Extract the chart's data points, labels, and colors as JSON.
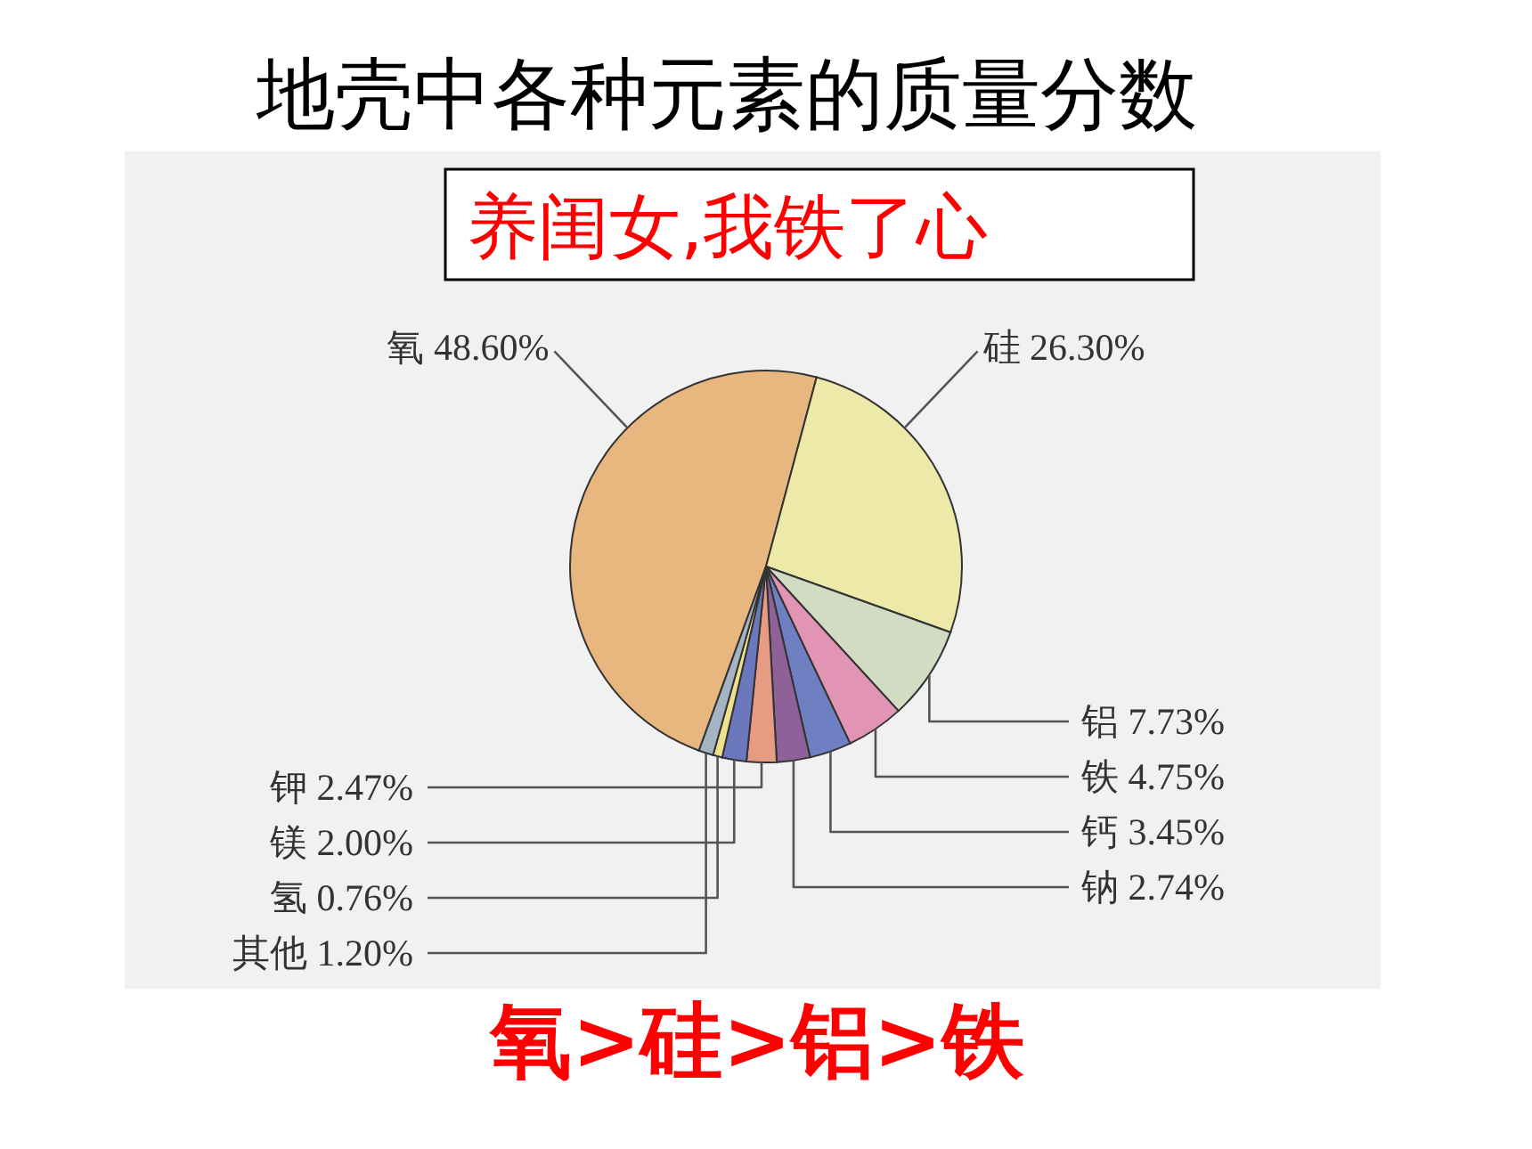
{
  "chart_data": {
    "type": "pie",
    "title": "地壳中各种元素的质量分数",
    "categories": [
      "氧",
      "硅",
      "铝",
      "铁",
      "钙",
      "钠",
      "钾",
      "镁",
      "氢",
      "其他"
    ],
    "values": [
      48.6,
      26.3,
      7.73,
      4.75,
      3.45,
      2.74,
      2.47,
      2.0,
      0.76,
      1.2
    ],
    "value_labels": [
      "48.60%",
      "26.30%",
      "7.73%",
      "4.75%",
      "3.45%",
      "2.74%",
      "2.47%",
      "2.00%",
      "0.76%",
      "1.20%"
    ],
    "colors": [
      "#e8b77f",
      "#ede9a8",
      "#d2dcc2",
      "#e294b5",
      "#6f80c2",
      "#8f6199",
      "#e79b82",
      "#6c78bd",
      "#efe08e",
      "#a4b4c2"
    ],
    "annotations": [
      "养闺女,我铁了心",
      "氧>硅>铝>铁"
    ]
  }
}
